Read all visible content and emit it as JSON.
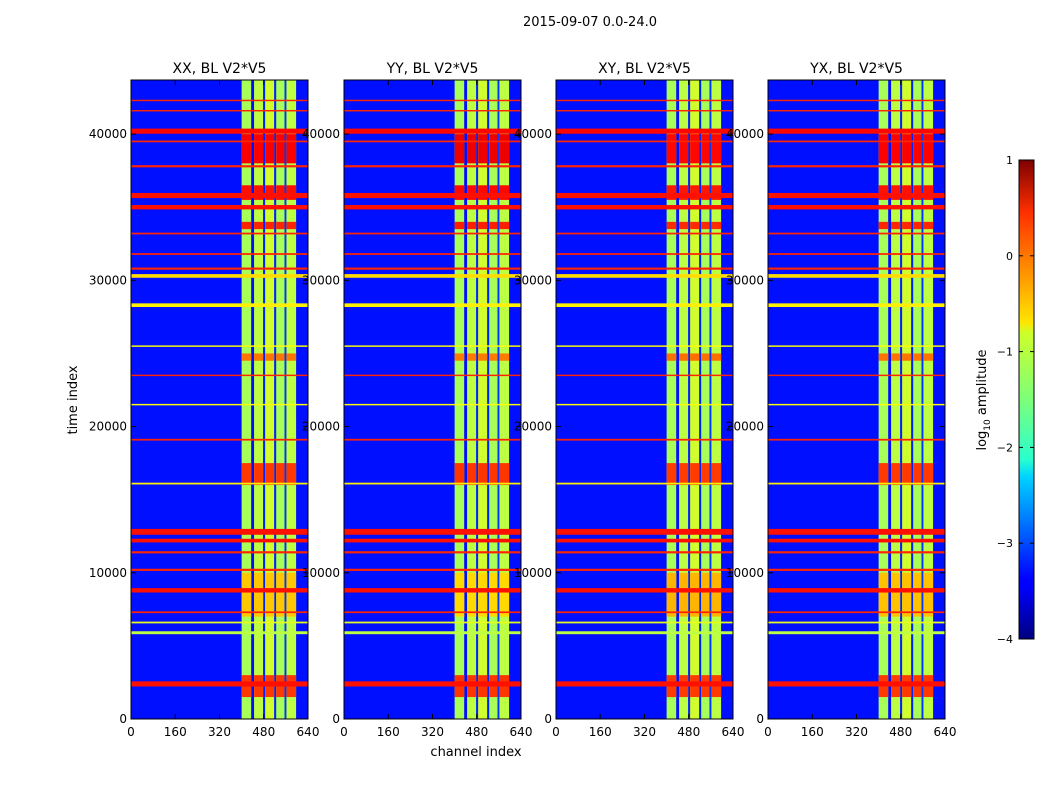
{
  "suptitle": "2015-09-07 0.0-24.0",
  "chart_data": {
    "type": "heatmap",
    "shared_xlabel": "channel index",
    "shared_ylabel": "time index",
    "xlim": [
      0,
      640
    ],
    "ylim": [
      0,
      43700
    ],
    "xticks": [
      0,
      160,
      320,
      480,
      640
    ],
    "yticks": [
      0,
      10000,
      20000,
      30000,
      40000
    ],
    "panels": [
      {
        "title": "XX, BL V2*V5",
        "intensity": 1.0
      },
      {
        "title": "YY, BL V2*V5",
        "intensity": 1.15
      },
      {
        "title": "XY, BL V2*V5",
        "intensity": 0.85
      },
      {
        "title": "YX, BL V2*V5",
        "intensity": 0.95
      }
    ],
    "band_columns": [
      {
        "ch": [
          400,
          435
        ],
        "level": -1.3
      },
      {
        "ch": [
          435,
          445
        ],
        "level": -3.3
      },
      {
        "ch": [
          445,
          478
        ],
        "level": -1.2
      },
      {
        "ch": [
          478,
          485
        ],
        "level": -3.2
      },
      {
        "ch": [
          485,
          518
        ],
        "level": -1.1
      },
      {
        "ch": [
          518,
          525
        ],
        "level": -3.2
      },
      {
        "ch": [
          525,
          555
        ],
        "level": -1.3
      },
      {
        "ch": [
          555,
          562
        ],
        "level": -3.1
      },
      {
        "ch": [
          562,
          597
        ],
        "level": -1.2
      }
    ],
    "hot_time_ranges": [
      {
        "t": [
          1500,
          3000
        ],
        "level": 0.1
      },
      {
        "t": [
          7000,
          10000
        ],
        "level": -0.6
      },
      {
        "t": [
          16000,
          17500
        ],
        "level": 0.1
      },
      {
        "t": [
          24500,
          25000
        ],
        "level": -0.2
      },
      {
        "t": [
          33500,
          34000
        ],
        "level": 0.2
      },
      {
        "t": [
          35500,
          36500
        ],
        "level": 0.3
      },
      {
        "t": [
          38000,
          40000
        ],
        "level": 0.4
      }
    ],
    "rfi_lines": [
      {
        "t": 2400,
        "width": 350,
        "level": 0.3
      },
      {
        "t": 5900,
        "width": 200,
        "level": -1.2
      },
      {
        "t": 6600,
        "width": 120,
        "level": -1.0
      },
      {
        "t": 7300,
        "width": 120,
        "level": 0.2
      },
      {
        "t": 8800,
        "width": 300,
        "level": 0.3
      },
      {
        "t": 10200,
        "width": 150,
        "level": 0.2
      },
      {
        "t": 11400,
        "width": 150,
        "level": 0.2
      },
      {
        "t": 12200,
        "width": 250,
        "level": 0.3
      },
      {
        "t": 12800,
        "width": 400,
        "level": 0.3
      },
      {
        "t": 16100,
        "width": 120,
        "level": -0.8
      },
      {
        "t": 19100,
        "width": 120,
        "level": 0.2
      },
      {
        "t": 21500,
        "width": 100,
        "level": -0.9
      },
      {
        "t": 23500,
        "width": 100,
        "level": 0.2
      },
      {
        "t": 25500,
        "width": 100,
        "level": -0.9
      },
      {
        "t": 28300,
        "width": 250,
        "level": -0.8
      },
      {
        "t": 30300,
        "width": 250,
        "level": -0.7
      },
      {
        "t": 30800,
        "width": 150,
        "level": 0.2
      },
      {
        "t": 31800,
        "width": 120,
        "level": 0.2
      },
      {
        "t": 33200,
        "width": 120,
        "level": 0.2
      },
      {
        "t": 35000,
        "width": 300,
        "level": 0.3
      },
      {
        "t": 35800,
        "width": 350,
        "level": 0.3
      },
      {
        "t": 37800,
        "width": 150,
        "level": 0.2
      },
      {
        "t": 39500,
        "width": 120,
        "level": 0.2
      },
      {
        "t": 40200,
        "width": 350,
        "level": 0.35
      },
      {
        "t": 41600,
        "width": 100,
        "level": 0.2
      },
      {
        "t": 42300,
        "width": 100,
        "level": 0.2
      }
    ],
    "background_level": -3.3,
    "colorbar": {
      "label_prefix": "log",
      "label_sub": "10",
      "label_suffix": " amplitude",
      "range": [
        -4,
        1
      ],
      "ticks": [
        "1",
        "0",
        "−1",
        "−2",
        "−3",
        "−4"
      ]
    }
  }
}
